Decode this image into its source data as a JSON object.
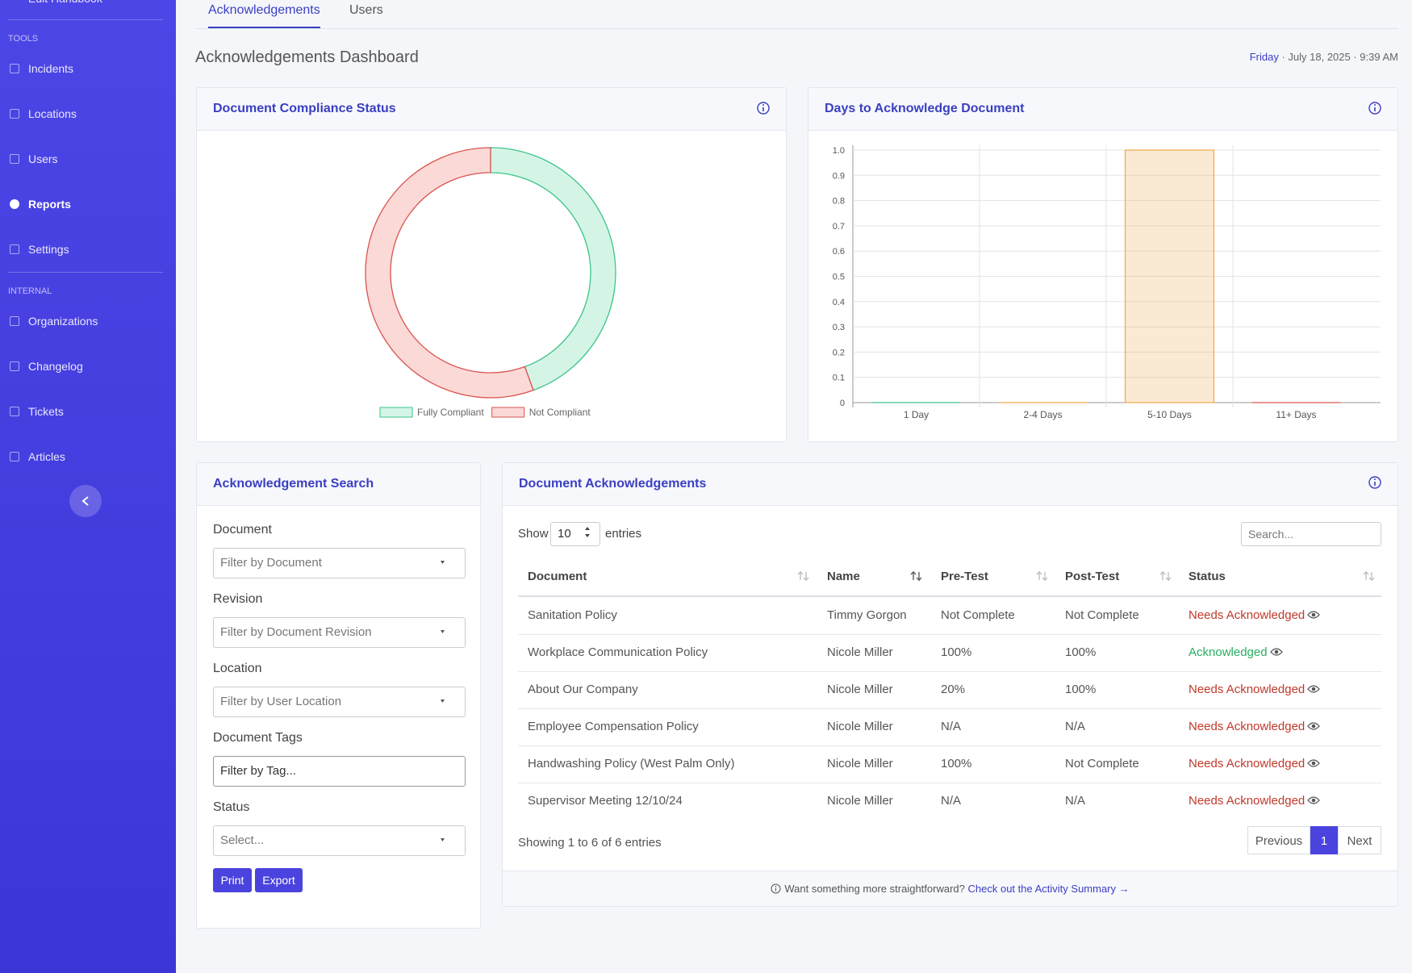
{
  "sidebar": {
    "top_item": "Edit Handbook",
    "active": "Reports",
    "sections": [
      {
        "title": "TOOLS",
        "items": [
          "Incidents",
          "Locations",
          "Users",
          "Reports",
          "Settings"
        ]
      },
      {
        "title": "INTERNAL",
        "items": [
          "Organizations",
          "Changelog",
          "Tickets",
          "Articles"
        ]
      }
    ]
  },
  "tabs": [
    "Acknowledgements",
    "Users"
  ],
  "active_tab": 0,
  "header": {
    "title": "Acknowledgements Dashboard",
    "date_day": "Friday",
    "date_rest": "· July 18, 2025 · 9:39 AM"
  },
  "chart_data": [
    {
      "type": "donut",
      "title": "Document Compliance Status",
      "categories": [
        "Fully Compliant",
        "Not Compliant"
      ],
      "values": [
        4,
        5
      ],
      "colors": [
        "#3cc489",
        "#d9534f"
      ],
      "fills": [
        "#d4f5e6",
        "#fbd9d6"
      ]
    },
    {
      "type": "bar",
      "title": "Days to Acknowledge Document",
      "categories": [
        "1 Day",
        "2-4 Days",
        "5-10 Days",
        "11+ Days"
      ],
      "values": [
        0,
        0,
        1,
        0
      ],
      "colors": [
        "#3cc489",
        "#f0ad4e",
        "#f0ad4e",
        "#d9534f"
      ],
      "ylim": [
        0,
        1
      ],
      "yticks": [
        0,
        0.1,
        0.2,
        0.3,
        0.4,
        0.5,
        0.6,
        0.7,
        0.8,
        0.9,
        {
          "value": 1,
          "label": "1.0"
        }
      ],
      "grid": true
    }
  ],
  "search": {
    "title": "Acknowledgement Search",
    "fields": [
      {
        "label": "Document",
        "placeholder": "Filter by Document",
        "kind": "select"
      },
      {
        "label": "Revision",
        "placeholder": "Filter by Document Revision",
        "kind": "select"
      },
      {
        "label": "Location",
        "placeholder": "Filter by User Location",
        "kind": "select"
      },
      {
        "label": "Document Tags",
        "placeholder": "Filter by Tag...",
        "kind": "input"
      },
      {
        "label": "Status",
        "placeholder": "Select...",
        "kind": "select"
      }
    ],
    "buttons": [
      "Print",
      "Export"
    ]
  },
  "table": {
    "title": "Document Acknowledgements",
    "show": "Show",
    "page_size": "10",
    "entries": "entries",
    "search_placeholder": "Search...",
    "columns": [
      "Document",
      "Name",
      "Pre-Test",
      "Post-Test",
      "Status"
    ],
    "rows": [
      [
        "Sanitation Policy",
        "Timmy Gorgon",
        "Not Complete",
        "Not Complete",
        "Needs Acknowledged"
      ],
      [
        "Workplace Communication Policy",
        "Nicole Miller",
        "100%",
        "100%",
        "Acknowledged"
      ],
      [
        "About Our Company",
        "Nicole Miller",
        "20%",
        "100%",
        "Needs Acknowledged"
      ],
      [
        "Employee Compensation Policy",
        "Nicole Miller",
        "N/A",
        "N/A",
        "Needs Acknowledged"
      ],
      [
        "Handwashing Policy (West Palm Only)",
        "Nicole Miller",
        "100%",
        "Not Complete",
        "Needs Acknowledged"
      ],
      [
        "Supervisor Meeting 12/10/24",
        "Nicole Miller",
        "N/A",
        "N/A",
        "Needs Acknowledged"
      ]
    ],
    "status_colors": [
      "#c0392b",
      "#27ae60",
      "#c0392b",
      "#c0392b",
      "#c0392b",
      "#c0392b"
    ],
    "info": "Showing 1 to 6 of 6 entries",
    "pagination": [
      "Previous",
      "1",
      "Next"
    ],
    "active_page": 1,
    "footer_text": "Want something more straightforward?",
    "footer_link": "Check out the Activity Summary →"
  }
}
